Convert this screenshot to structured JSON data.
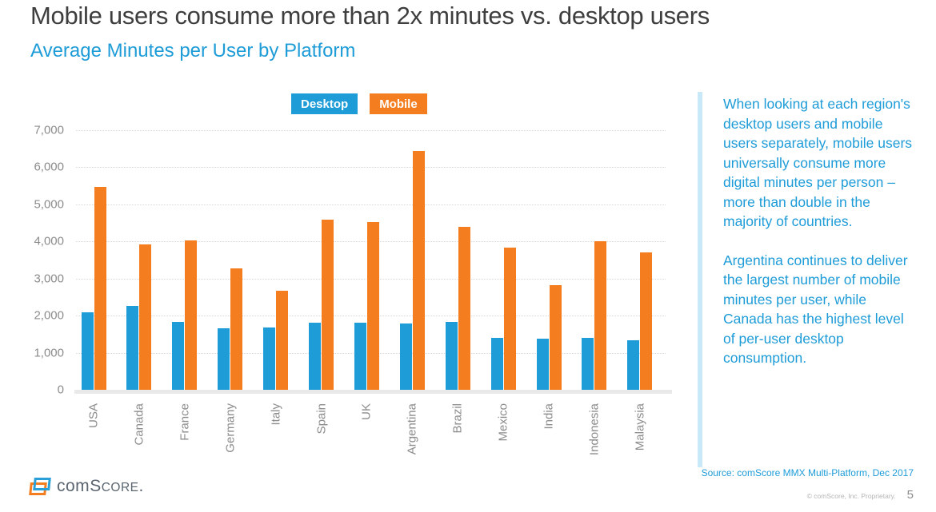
{
  "header": {
    "title": "Mobile users consume more than 2x minutes vs. desktop users",
    "subtitle": "Average Minutes per User by Platform"
  },
  "colors": {
    "desktop_blue": "#1e9cd8",
    "mobile_orange": "#f47d20",
    "panel_rule_light_blue": "#c9e8f8",
    "axis_text_gray": "#8c8c8c"
  },
  "chart_data": {
    "type": "bar",
    "title": "Average Minutes per User by Platform",
    "categories": [
      "USA",
      "Canada",
      "France",
      "Germany",
      "Italy",
      "Spain",
      "UK",
      "Argentina",
      "Brazil",
      "Mexico",
      "India",
      "Indonesia",
      "Malaysia"
    ],
    "series": [
      {
        "name": "Desktop",
        "color": "#1e9cd8",
        "values": [
          2080,
          2270,
          1840,
          1650,
          1690,
          1820,
          1800,
          1780,
          1840,
          1390,
          1370,
          1410,
          1340
        ]
      },
      {
        "name": "Mobile",
        "color": "#f47d20",
        "values": [
          5480,
          3920,
          4030,
          3270,
          2680,
          4580,
          4520,
          6440,
          4390,
          3840,
          2820,
          4010,
          3710
        ]
      }
    ],
    "xlabel": "",
    "ylabel": "",
    "ylim": [
      0,
      7000
    ],
    "ytick_interval": 1000,
    "ytick_labels": [
      "7,000",
      "6,000",
      "5,000",
      "4,000",
      "3,000",
      "2,000",
      "1,000",
      "0"
    ],
    "grid": true,
    "legend_position": "top"
  },
  "sidebar": {
    "paragraph1": "When looking at each region's desktop users and mobile users separately, mobile users universally consume more digital minutes per person – more than double in the majority of countries.",
    "paragraph2": "Argentina continues to deliver the largest number of mobile minutes per user, while Canada has the highest level of per-user desktop consumption."
  },
  "footer": {
    "logo": {
      "com": "com",
      "s": "S",
      "core": "CORE",
      "period": "."
    },
    "source": "Source: comScore MMX Multi-Platform, Dec 2017",
    "copyright": "© comScore, Inc. Proprietary.",
    "page_number": "5"
  }
}
